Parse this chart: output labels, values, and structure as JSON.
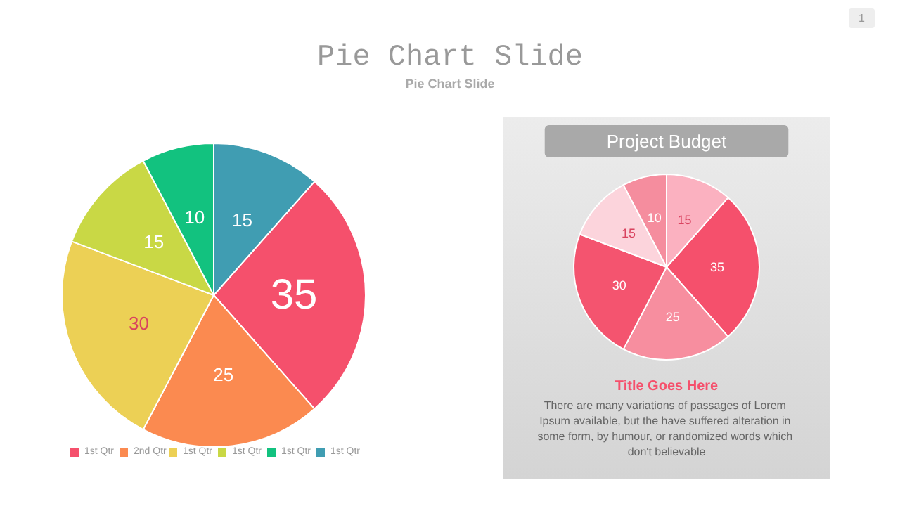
{
  "chart_data": [
    {
      "type": "pie",
      "title": "Pie Chart Slide",
      "subtitle": "Pie Chart Slide",
      "categories": [
        "1st Qtr",
        "2nd Qtr",
        "1st Qtr",
        "1st Qtr",
        "1st Qtr",
        "1st Qtr"
      ],
      "values": [
        35,
        25,
        30,
        15,
        10,
        15
      ],
      "colors": [
        "#f5506c",
        "#fb8a50",
        "#ecd055",
        "#c9d845",
        "#12c27f",
        "#409db2"
      ],
      "data_labels": true,
      "legend": "bottom",
      "annotations": [
        "1"
      ]
    },
    {
      "type": "pie",
      "title": "Project Budget",
      "categories": [
        null,
        null,
        null,
        null,
        null,
        null
      ],
      "values": [
        35,
        25,
        30,
        15,
        10,
        15
      ],
      "colors": [
        "#f5506c",
        "#f78e9f",
        "#f4546f",
        "#fcd4dc",
        "#f58d9e",
        "#fbb1c0"
      ],
      "data_labels": true,
      "annotations": [
        "Title Goes Here",
        "There are many variations of passages of Lorem Ipsum available, but the have suffered alteration in some form, by humour, or randomized words which don't believable"
      ]
    }
  ]
}
